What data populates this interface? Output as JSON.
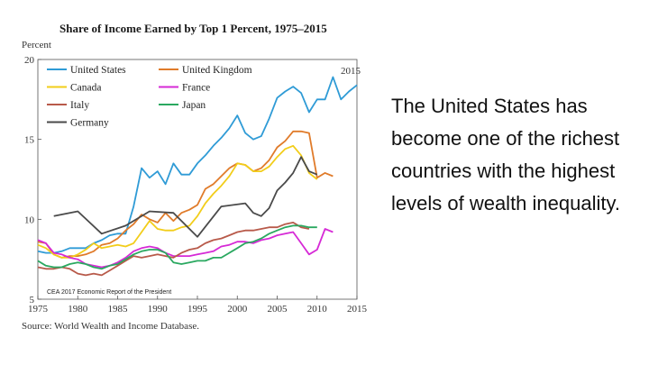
{
  "chart_data": {
    "type": "line",
    "title": "Share of Income Earned by Top 1 Percent, 1975–2015",
    "ylabel": "Percent",
    "xlabel": "",
    "xlim": [
      1975,
      2015
    ],
    "ylim": [
      5,
      20
    ],
    "x_ticks": [
      1975,
      1980,
      1985,
      1990,
      1995,
      2000,
      2005,
      2010,
      2015
    ],
    "y_ticks": [
      5,
      10,
      15,
      20
    ],
    "end_label": "2015",
    "note": "CEA 2017 Economic Report of the President",
    "source": "Source: World Wealth and Income Database.",
    "legend_position": "top-left",
    "series": [
      {
        "name": "United States",
        "color": "#2f9bd6",
        "x": [
          1975,
          1976,
          1977,
          1978,
          1979,
          1980,
          1981,
          1982,
          1983,
          1984,
          1985,
          1986,
          1987,
          1988,
          1989,
          1990,
          1991,
          1992,
          1993,
          1994,
          1995,
          1996,
          1997,
          1998,
          1999,
          2000,
          2001,
          2002,
          2003,
          2004,
          2005,
          2006,
          2007,
          2008,
          2009,
          2010,
          2011,
          2012,
          2013,
          2014,
          2015
        ],
        "y": [
          8.0,
          7.9,
          7.9,
          8.0,
          8.2,
          8.2,
          8.2,
          8.5,
          8.7,
          9.0,
          9.1,
          9.1,
          10.8,
          13.2,
          12.6,
          13.0,
          12.2,
          13.5,
          12.8,
          12.8,
          13.5,
          14.0,
          14.6,
          15.1,
          15.7,
          16.5,
          15.4,
          15.0,
          15.2,
          16.3,
          17.6,
          18.0,
          18.3,
          17.9,
          16.7,
          17.5,
          17.5,
          18.9,
          17.5,
          18.0,
          18.4
        ]
      },
      {
        "name": "United Kingdom",
        "color": "#e07b2a",
        "x": [
          1975,
          1976,
          1977,
          1978,
          1979,
          1980,
          1981,
          1982,
          1983,
          1984,
          1985,
          1986,
          1987,
          1988,
          1989,
          1990,
          1991,
          1992,
          1993,
          1994,
          1995,
          1996,
          1997,
          1998,
          1999,
          2000,
          2001,
          2002,
          2003,
          2004,
          2005,
          2006,
          2007,
          2008,
          2009,
          2010,
          2011,
          2012
        ],
        "y": [
          8.6,
          8.5,
          7.8,
          7.6,
          7.7,
          7.7,
          7.8,
          8.0,
          8.4,
          8.5,
          8.8,
          9.3,
          9.7,
          10.3,
          10.0,
          9.8,
          10.4,
          9.9,
          10.4,
          10.6,
          10.9,
          11.9,
          12.2,
          12.7,
          13.2,
          13.5,
          13.4,
          13.0,
          13.2,
          13.7,
          14.5,
          14.9,
          15.5,
          15.5,
          15.4,
          12.6,
          12.9,
          12.7
        ]
      },
      {
        "name": "Canada",
        "color": "#f2cd1a",
        "x": [
          1975,
          1976,
          1977,
          1978,
          1979,
          1980,
          1981,
          1982,
          1983,
          1984,
          1985,
          1986,
          1987,
          1988,
          1989,
          1990,
          1991,
          1992,
          1993,
          1994,
          1995,
          1996,
          1997,
          1998,
          1999,
          2000,
          2001,
          2002,
          2003,
          2004,
          2005,
          2006,
          2007,
          2008,
          2009,
          2010
        ],
        "y": [
          8.4,
          8.2,
          7.8,
          7.6,
          7.6,
          7.8,
          8.1,
          8.5,
          8.2,
          8.3,
          8.4,
          8.3,
          8.5,
          9.2,
          9.9,
          9.4,
          9.3,
          9.3,
          9.5,
          9.6,
          10.2,
          11.0,
          11.6,
          12.1,
          12.7,
          13.5,
          13.4,
          13.0,
          13.0,
          13.3,
          13.9,
          14.4,
          14.6,
          14.0,
          12.9,
          12.5
        ]
      },
      {
        "name": "France",
        "color": "#d62ad6",
        "x": [
          1975,
          1976,
          1977,
          1978,
          1979,
          1980,
          1981,
          1982,
          1983,
          1984,
          1985,
          1986,
          1987,
          1988,
          1989,
          1990,
          1991,
          1992,
          1993,
          1994,
          1995,
          1996,
          1997,
          1998,
          1999,
          2000,
          2001,
          2002,
          2003,
          2004,
          2005,
          2006,
          2007,
          2008,
          2009,
          2010,
          2011,
          2012
        ],
        "y": [
          8.7,
          8.5,
          7.9,
          7.8,
          7.6,
          7.5,
          7.2,
          7.1,
          7.0,
          7.1,
          7.3,
          7.6,
          8.0,
          8.2,
          8.3,
          8.2,
          7.9,
          7.7,
          7.7,
          7.7,
          7.8,
          7.9,
          8.0,
          8.3,
          8.4,
          8.6,
          8.6,
          8.5,
          8.7,
          8.8,
          9.0,
          9.1,
          9.2,
          8.5,
          7.8,
          8.1,
          9.4,
          9.2
        ]
      },
      {
        "name": "Italy",
        "color": "#b85a4a",
        "x": [
          1975,
          1976,
          1977,
          1978,
          1979,
          1980,
          1981,
          1982,
          1983,
          1984,
          1985,
          1986,
          1987,
          1988,
          1989,
          1990,
          1991,
          1992,
          1993,
          1994,
          1995,
          1996,
          1997,
          1998,
          1999,
          2000,
          2001,
          2002,
          2003,
          2004,
          2005,
          2006,
          2007,
          2008,
          2009
        ],
        "y": [
          7.0,
          6.9,
          6.9,
          7.0,
          6.9,
          6.6,
          6.5,
          6.6,
          6.5,
          6.8,
          7.1,
          7.4,
          7.7,
          7.6,
          7.7,
          7.8,
          7.7,
          7.6,
          7.9,
          8.1,
          8.2,
          8.5,
          8.7,
          8.8,
          9.0,
          9.2,
          9.3,
          9.3,
          9.4,
          9.5,
          9.5,
          9.7,
          9.8,
          9.5,
          9.4
        ]
      },
      {
        "name": "Japan",
        "color": "#2aa860",
        "x": [
          1975,
          1976,
          1977,
          1978,
          1979,
          1980,
          1981,
          1982,
          1983,
          1984,
          1985,
          1986,
          1987,
          1988,
          1989,
          1990,
          1991,
          1992,
          1993,
          1994,
          1995,
          1996,
          1997,
          1998,
          1999,
          2000,
          2001,
          2002,
          2003,
          2004,
          2005,
          2006,
          2007,
          2008,
          2009,
          2010
        ],
        "y": [
          7.4,
          7.1,
          7.0,
          7.0,
          7.2,
          7.3,
          7.2,
          7.0,
          6.9,
          7.1,
          7.2,
          7.5,
          7.8,
          8.0,
          8.1,
          8.1,
          7.9,
          7.3,
          7.2,
          7.3,
          7.4,
          7.4,
          7.6,
          7.6,
          7.9,
          8.2,
          8.5,
          8.6,
          8.8,
          9.1,
          9.3,
          9.5,
          9.6,
          9.6,
          9.5,
          9.5
        ]
      },
      {
        "name": "Germany",
        "color": "#4a4a4a",
        "x": [
          1977,
          1978,
          1979,
          1980,
          1983,
          1986,
          1989,
          1992,
          1995,
          1998,
          2001,
          2002,
          2003,
          2004,
          2005,
          2006,
          2007,
          2008,
          2009,
          2010
        ],
        "y": [
          10.2,
          10.3,
          10.4,
          10.5,
          9.1,
          9.6,
          10.5,
          10.4,
          8.9,
          10.8,
          11.0,
          10.4,
          10.2,
          10.7,
          11.8,
          12.3,
          12.9,
          13.9,
          13.0,
          12.8
        ]
      }
    ]
  },
  "side_text": "The United States has become one of the richest countries with the highest levels of wealth inequality."
}
